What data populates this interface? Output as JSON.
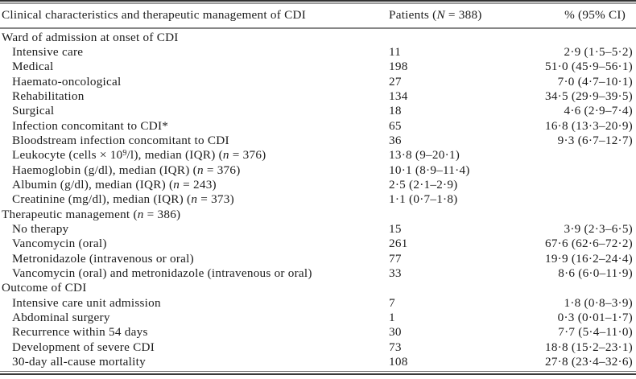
{
  "table": {
    "header": {
      "label": "Clinical characteristics and therapeutic management of CDI",
      "patients": "Patients (_N_ = 388)",
      "pct": "% (95% CI)"
    },
    "rows": [
      {
        "type": "section",
        "label": "Ward of admission at onset of CDI",
        "patients": "",
        "pct": ""
      },
      {
        "type": "item",
        "label": "Intensive care",
        "patients": "11",
        "pct": "2·9 (1·5–5·2)"
      },
      {
        "type": "item",
        "label": "Medical",
        "patients": "198",
        "pct": "51·0 (45·9–56·1)"
      },
      {
        "type": "item",
        "label": "Haemato-oncological",
        "patients": "27",
        "pct": "7·0 (4·7–10·1)"
      },
      {
        "type": "item",
        "label": "Rehabilitation",
        "patients": "134",
        "pct": "34·5 (29·9–39·5)"
      },
      {
        "type": "item",
        "label": "Surgical",
        "patients": "18",
        "pct": "4·6 (2·9–7·4)"
      },
      {
        "type": "item",
        "label": "Infection concomitant to CDI*",
        "patients": "65",
        "pct": "16·8 (13·3–20·9)"
      },
      {
        "type": "item",
        "label": "Bloodstream infection concomitant to CDI",
        "patients": "36",
        "pct": "9·3 (6·7–12·7)"
      },
      {
        "type": "item",
        "label": "Leukocyte (cells × 10^{9}/l), median (IQR) (_n_ = 376)",
        "patients": "13·8 (9–20·1)",
        "pct": ""
      },
      {
        "type": "item",
        "label": "Haemoglobin (g/dl), median (IQR) (_n_ = 376)",
        "patients": "10·1 (8·9–11·4)",
        "pct": ""
      },
      {
        "type": "item",
        "label": "Albumin (g/dl), median (IQR) (_n_ = 243)",
        "patients": "2·5 (2·1–2·9)",
        "pct": ""
      },
      {
        "type": "item",
        "label": "Creatinine (mg/dl), median (IQR) (_n_ = 373)",
        "patients": "1·1 (0·7–1·8)",
        "pct": ""
      },
      {
        "type": "section",
        "label": "Therapeutic management (_n_ = 386)",
        "patients": "",
        "pct": ""
      },
      {
        "type": "item",
        "label": "No therapy",
        "patients": "15",
        "pct": "3·9 (2·3–6·5)"
      },
      {
        "type": "item",
        "label": "Vancomycin (oral)",
        "patients": "261",
        "pct": "67·6 (62·6–72·2)"
      },
      {
        "type": "item",
        "label": "Metronidazole (intravenous or oral)",
        "patients": "77",
        "pct": "19·9 (16·2–24·4)"
      },
      {
        "type": "item",
        "label": "Vancomycin (oral) and metronidazole (intravenous or oral)",
        "patients": "33",
        "pct": "8·6 (6·0–11·9)"
      },
      {
        "type": "section",
        "label": "Outcome of CDI",
        "patients": "",
        "pct": ""
      },
      {
        "type": "item",
        "label": "Intensive care unit admission",
        "patients": "7",
        "pct": "1·8 (0·8–3·9)"
      },
      {
        "type": "item",
        "label": "Abdominal surgery",
        "patients": "1",
        "pct": "0·3 (0·01–1·7)"
      },
      {
        "type": "item",
        "label": "Recurrence within 54 days",
        "patients": "30",
        "pct": "7·7 (5·4–11·0)"
      },
      {
        "type": "item",
        "label": "Development of severe CDI",
        "patients": "73",
        "pct": "18·8 (15·2–23·1)"
      },
      {
        "type": "item",
        "label": "30-day all-cause mortality",
        "patients": "108",
        "pct": "27·8 (23·4–32·6)"
      }
    ]
  },
  "colors": {
    "text": "#1b1b1b",
    "rule_dark": "#323232",
    "rule_gray": "#9a9a9a",
    "background": "#ffffff"
  }
}
